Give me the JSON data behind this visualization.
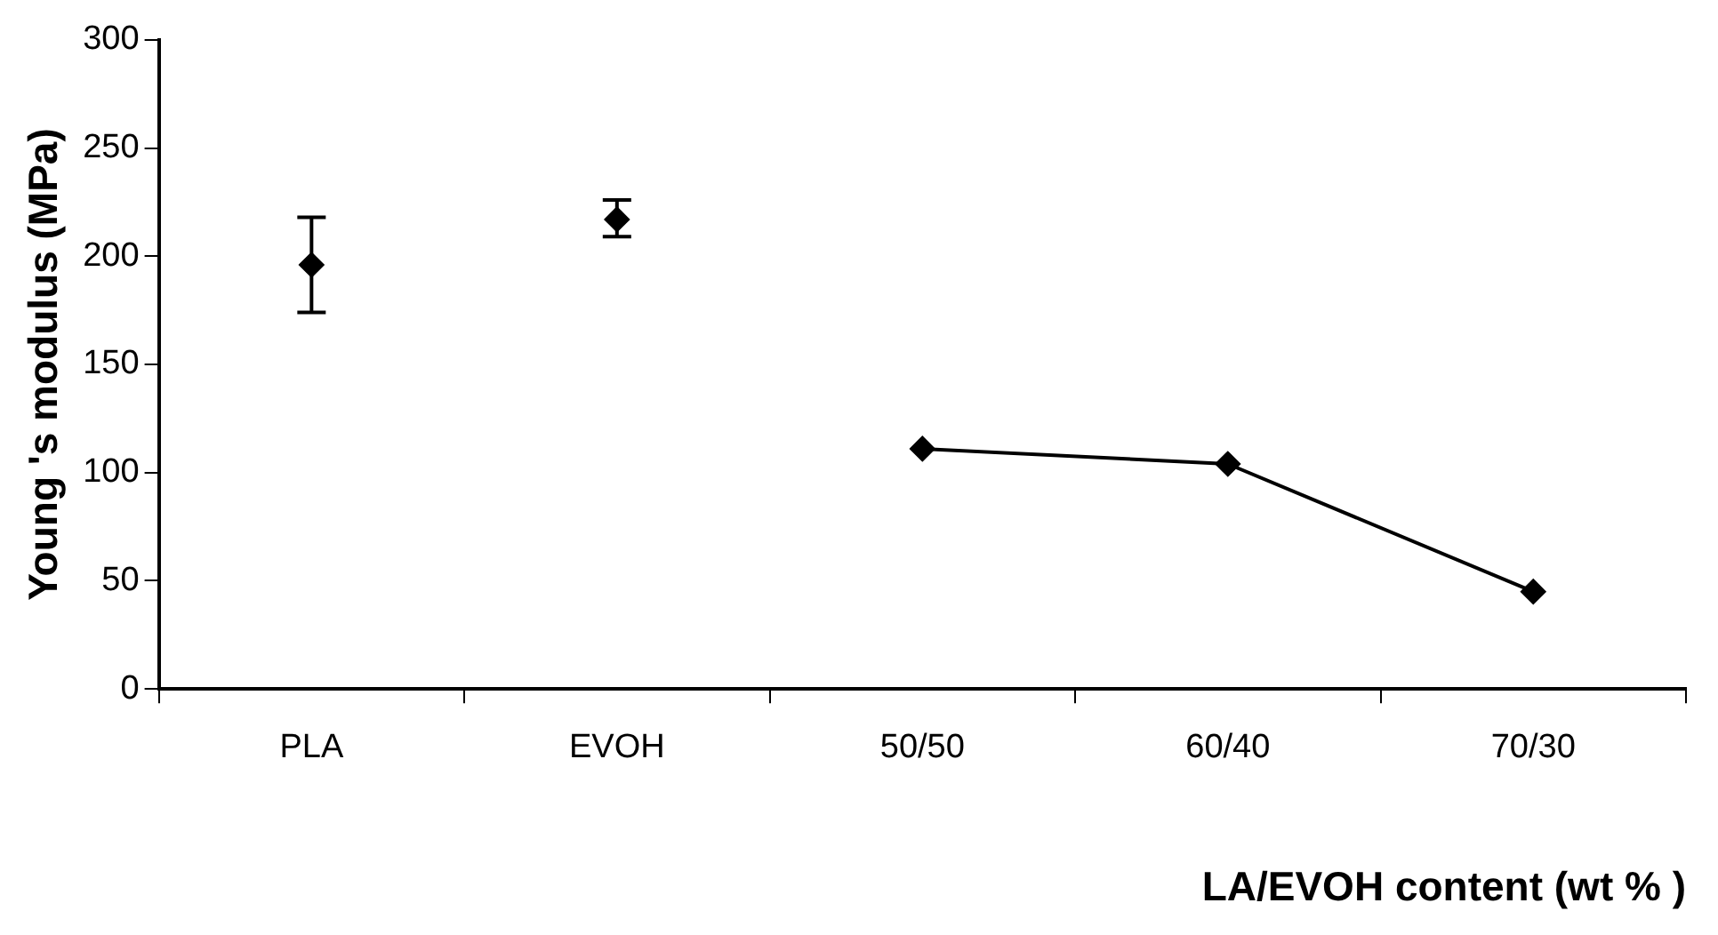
{
  "chart_data": {
    "type": "line",
    "xlabel": "LA/EVOH content (wt % )",
    "ylabel": "Young 's modulus (MPa)",
    "categories": [
      "PLA",
      "EVOH",
      "50/50",
      "60/40",
      "70/30"
    ],
    "series": [
      {
        "type": "scatter",
        "color": "#000000",
        "values": [
          196,
          217,
          null,
          null,
          null
        ],
        "errors": [
          [
            174,
            218
          ],
          [
            209,
            226
          ],
          null,
          null,
          null
        ]
      },
      {
        "color": "#000000",
        "values": [
          null,
          null,
          111,
          104,
          45
        ]
      }
    ],
    "ylim": [
      0,
      300
    ],
    "yticks": [
      0,
      50,
      100,
      150,
      200,
      250,
      300
    ],
    "marker": "diamond",
    "line_style": "solid",
    "grid": false,
    "legend": false
  }
}
